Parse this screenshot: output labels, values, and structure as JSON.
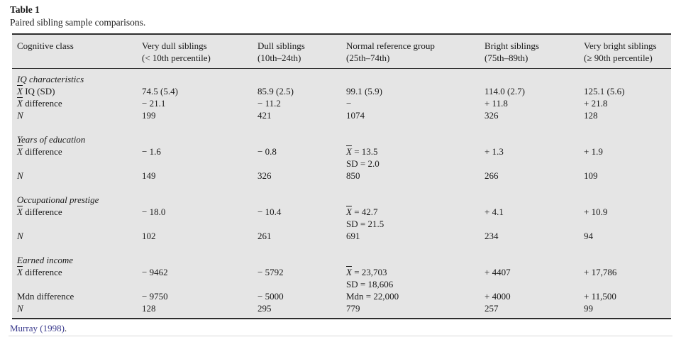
{
  "title": "Table 1",
  "caption": "Paired sibling sample comparisons.",
  "source": {
    "link": "Murray (1998)",
    "suffix": "."
  },
  "colors": {
    "table_bg": "#e5e5e5",
    "rule_dark": "#2e2e2e",
    "text": "#1b1b1b",
    "link": "#3c3c8e"
  },
  "table": {
    "headers": [
      {
        "line1": "Cognitive class",
        "line2": ""
      },
      {
        "line1": "Very dull siblings",
        "line2": "(< 10th percentile)"
      },
      {
        "line1": "Dull siblings",
        "line2": "(10th–24th)"
      },
      {
        "line1": "Normal reference group",
        "line2": "(25th–74th)"
      },
      {
        "line1": "Bright siblings",
        "line2": "(75th–89th)"
      },
      {
        "line1": "Very bright siblings",
        "line2": "(≥ 90th percentile)"
      }
    ],
    "sections": [
      {
        "title": "IQ characteristics",
        "rows": [
          {
            "xbar": "X",
            "label": " IQ (SD)",
            "c1": "74.5 (5.4)",
            "c2": "85.9 (2.5)",
            "c3a": "99.1 (5.9)",
            "c4": "114.0 (2.7)",
            "c5": "125.1 (5.6)"
          },
          {
            "xbar": "X",
            "label": " difference",
            "c1": "− 21.1",
            "c2": "− 11.2",
            "c3a": "−",
            "c4": "+ 11.8",
            "c5": "+ 21.8"
          },
          {
            "label": "N",
            "c1": "199",
            "c2": "421",
            "c3a": "1074",
            "c4": "326",
            "c5": "128"
          }
        ]
      },
      {
        "title": "Years of education",
        "rows": [
          {
            "xbar": "X",
            "label": " difference",
            "c1": "− 1.6",
            "c2": "− 0.8",
            "c3_xbar": "X",
            "c3a": " = 13.5",
            "c3b": "SD = 2.0",
            "c4": "+ 1.3",
            "c5": "+ 1.9"
          },
          {
            "label": "N",
            "c1": "149",
            "c2": "326",
            "c3a": "850",
            "c4": "266",
            "c5": "109"
          }
        ]
      },
      {
        "title": "Occupational prestige",
        "rows": [
          {
            "xbar": "X",
            "label": " difference",
            "c1": "− 18.0",
            "c2": "− 10.4",
            "c3_xbar": "X",
            "c3a": " = 42.7",
            "c3b": "SD = 21.5",
            "c4": "+ 4.1",
            "c5": "+ 10.9"
          },
          {
            "label": "N",
            "c1": "102",
            "c2": "261",
            "c3a": "691",
            "c4": "234",
            "c5": "94"
          }
        ]
      },
      {
        "title": "Earned income",
        "rows": [
          {
            "xbar": "X",
            "label": " difference",
            "c1": "− 9462",
            "c2": "− 5792",
            "c3_xbar": "X",
            "c3a": " = 23,703",
            "c3b": "SD = 18,606",
            "c4": "+ 4407",
            "c5": "+ 17,786"
          },
          {
            "label": "Mdn difference",
            "c1": "− 9750",
            "c2": "− 5000",
            "c3a": "Mdn = 22,000",
            "c4": "+ 4000",
            "c5": "+ 11,500"
          },
          {
            "label": "N",
            "c1": "128",
            "c2": "295",
            "c3a": "779",
            "c4": "257",
            "c5": "99"
          }
        ]
      }
    ]
  }
}
